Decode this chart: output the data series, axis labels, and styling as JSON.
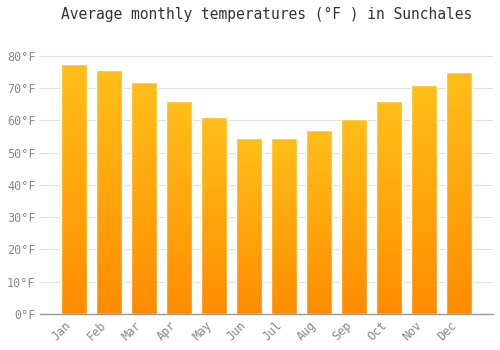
{
  "title": "Average monthly temperatures (°F ) in Sunchales",
  "months": [
    "Jan",
    "Feb",
    "Mar",
    "Apr",
    "May",
    "Jun",
    "Jul",
    "Aug",
    "Sep",
    "Oct",
    "Nov",
    "Dec"
  ],
  "values": [
    77.5,
    75.5,
    72.0,
    66.0,
    61.0,
    54.5,
    54.5,
    57.0,
    60.5,
    66.0,
    71.0,
    75.0
  ],
  "bar_color_top": "#FFB300",
  "bar_color_bottom": "#FF8C00",
  "bar_edge_color": "#FFFFFF",
  "background_color": "#FFFFFF",
  "plot_bg_color": "#FFFFFF",
  "grid_color": "#E0E0E0",
  "ylim": [
    0,
    88
  ],
  "ytick_values": [
    0,
    10,
    20,
    30,
    40,
    50,
    60,
    70,
    80
  ],
  "title_fontsize": 10.5,
  "tick_fontsize": 8.5,
  "tick_color": "#888888",
  "title_color": "#333333",
  "bar_width": 0.75
}
